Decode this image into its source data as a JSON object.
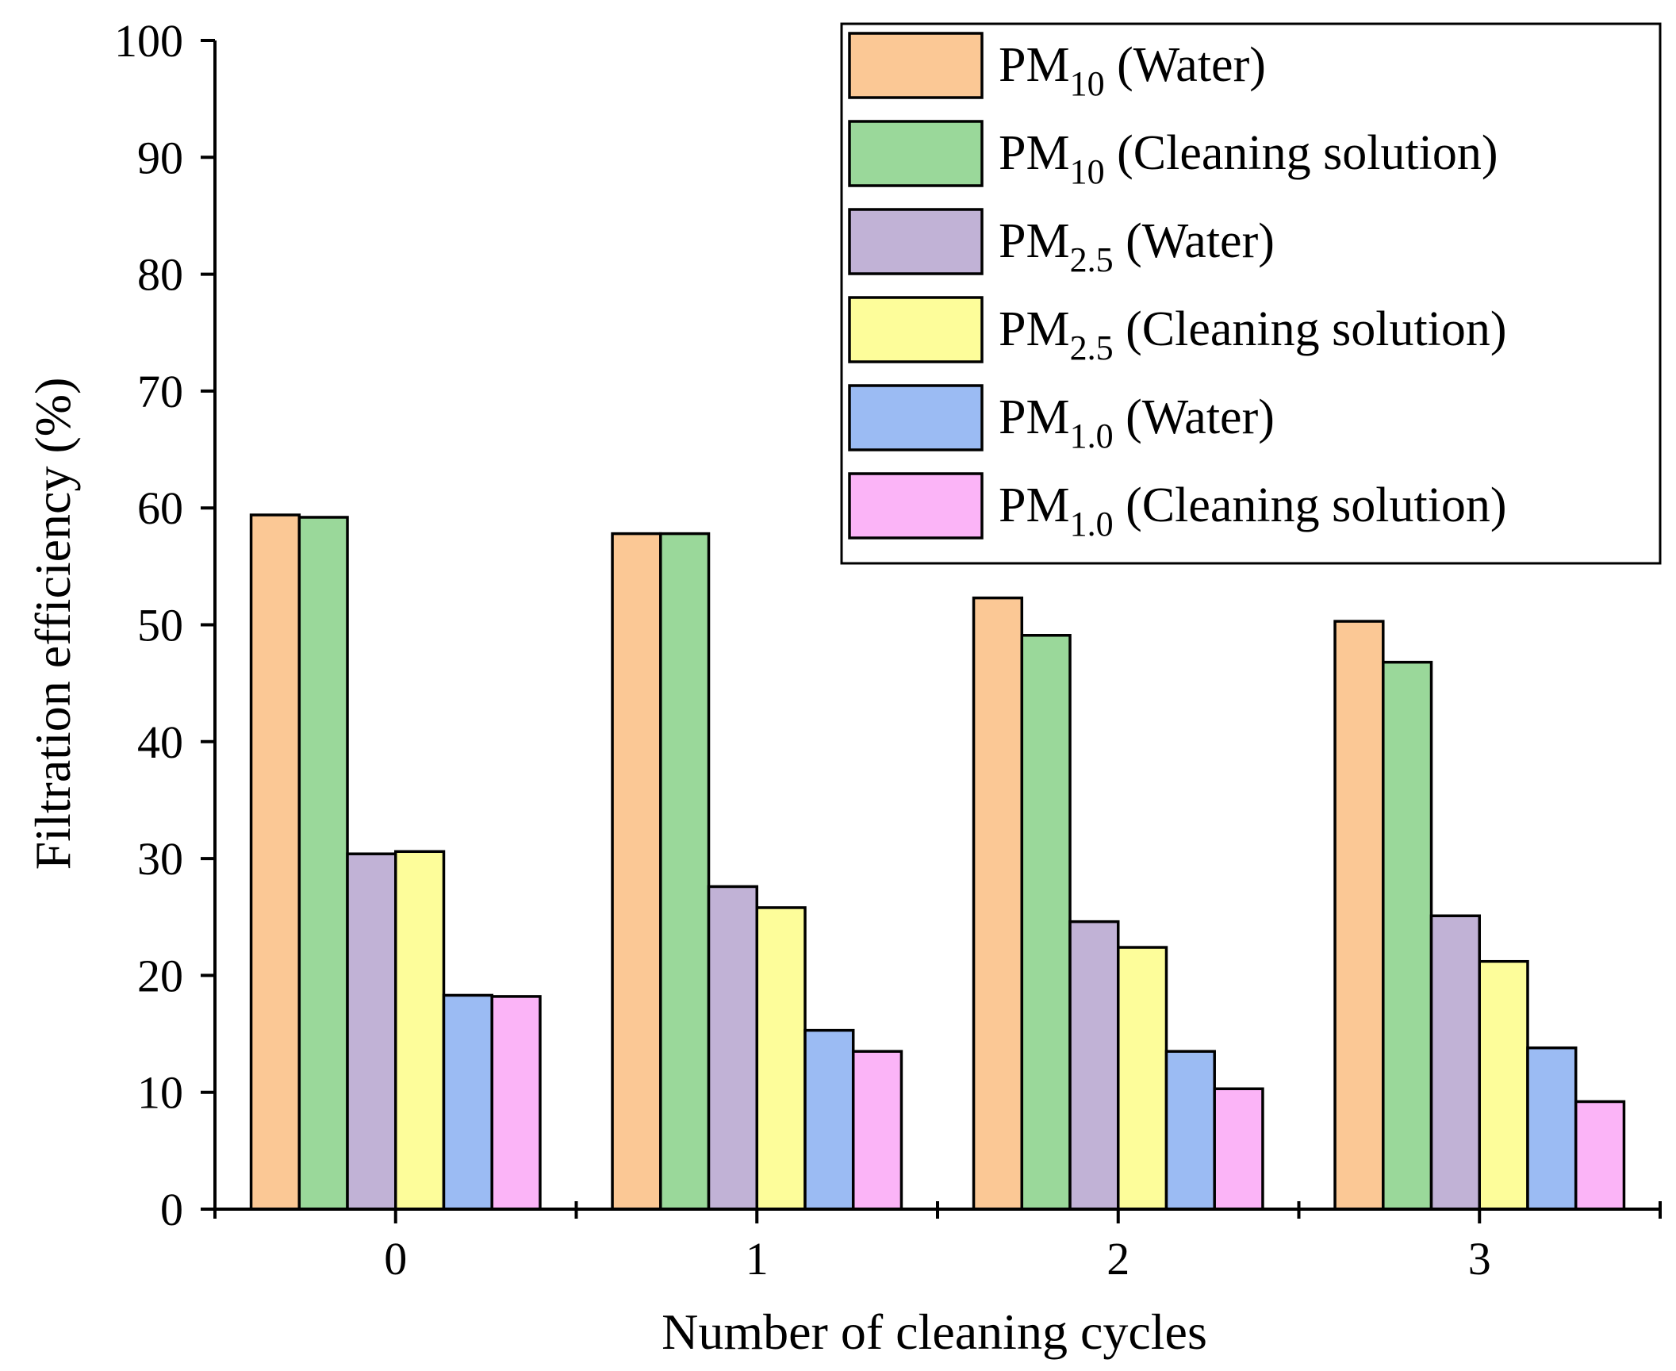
{
  "chart_data": {
    "type": "bar",
    "x_label": "Number of cleaning cycles",
    "y_label": "Filtration efficiency (%)",
    "categories": [
      "0",
      "1",
      "2",
      "3"
    ],
    "series": [
      {
        "name": "PM10 (Water)",
        "color": "#fbc895",
        "values": [
          59.4,
          57.8,
          52.3,
          50.3
        ]
      },
      {
        "name": "PM10 (Cleaning solution)",
        "color": "#9ad89a",
        "values": [
          59.2,
          57.8,
          49.1,
          46.8
        ]
      },
      {
        "name": "PM2.5 (Water)",
        "color": "#c1b2d6",
        "values": [
          30.4,
          27.6,
          24.6,
          25.1
        ]
      },
      {
        "name": "PM2.5 (Cleaning solution)",
        "color": "#fdfd9a",
        "values": [
          30.6,
          25.8,
          22.4,
          21.2
        ]
      },
      {
        "name": "PM1.0 (Water)",
        "color": "#9bbbf3",
        "values": [
          18.3,
          15.3,
          13.5,
          13.8
        ]
      },
      {
        "name": "PM1.0 (Cleaning solution)",
        "color": "#fbb4f7",
        "values": [
          18.2,
          13.5,
          10.3,
          9.2
        ]
      }
    ],
    "ylim": [
      0,
      100
    ],
    "yticks": [
      0,
      10,
      20,
      30,
      40,
      50,
      60,
      70,
      80,
      90,
      100
    ],
    "grid": false,
    "legend": "upper right"
  }
}
